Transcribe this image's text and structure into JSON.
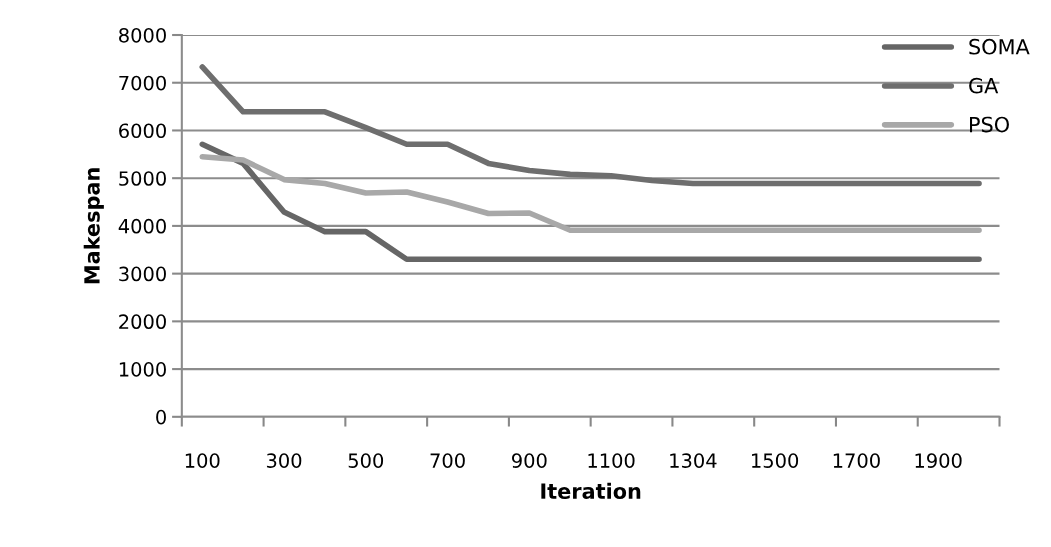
{
  "chart_data": {
    "type": "line",
    "xlabel": "Iteration",
    "ylabel": "Makespan",
    "categories": [
      "100",
      null,
      "300",
      null,
      "500",
      null,
      "700",
      null,
      "900",
      null,
      "1100",
      null,
      "1304",
      null,
      "1500",
      null,
      "1700",
      null,
      "1900",
      null
    ],
    "series": [
      {
        "name": "SOMA",
        "color": "#666666",
        "values": [
          5710,
          5310,
          4290,
          3880,
          3880,
          3300,
          3300,
          3300,
          3300,
          3300,
          3300,
          3300,
          3300,
          3300,
          3300,
          3300,
          3300,
          3300,
          3300,
          3300
        ]
      },
      {
        "name": "GA",
        "color": "#6e6e6e",
        "values": [
          7330,
          6390,
          6390,
          6390,
          6060,
          5710,
          5710,
          5310,
          5160,
          5080,
          5050,
          4950,
          4890,
          4890,
          4890,
          4890,
          4890,
          4890,
          4890,
          4890
        ]
      },
      {
        "name": "PSO",
        "color": "#a8a8a8",
        "values": [
          5450,
          5380,
          4970,
          4890,
          4690,
          4710,
          4500,
          4260,
          4270,
          3910,
          3910,
          3910,
          3910,
          3910,
          3910,
          3910,
          3910,
          3910,
          3910,
          3910
        ]
      }
    ],
    "ylim": [
      0,
      8000
    ],
    "yticks": [
      0,
      1000,
      2000,
      3000,
      4000,
      5000,
      6000,
      7000,
      8000
    ],
    "grid": "y",
    "legend": "top right",
    "marker": "none",
    "line_style": "solid"
  }
}
